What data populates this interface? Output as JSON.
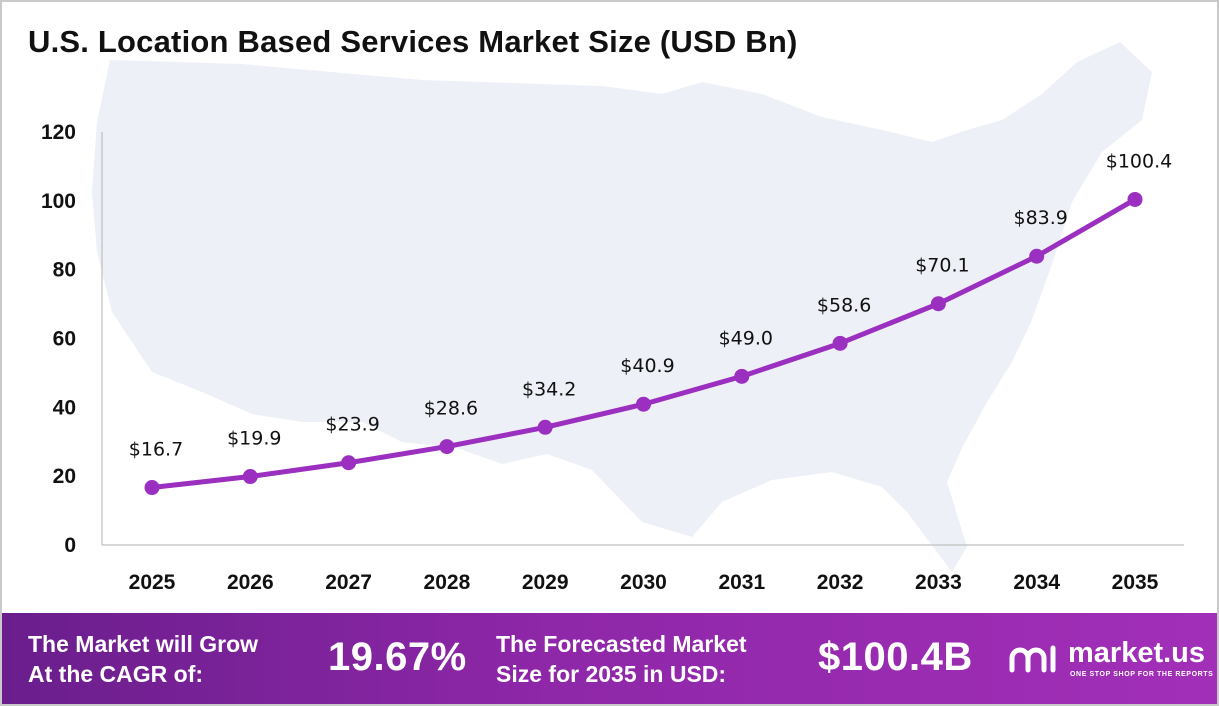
{
  "chart_data": {
    "type": "line",
    "title": "U.S. Location Based Services Market Size (USD Bn)",
    "xlabel": "",
    "ylabel": "",
    "categories": [
      "2025",
      "2026",
      "2027",
      "2028",
      "2029",
      "2030",
      "2031",
      "2032",
      "2033",
      "2034",
      "2035"
    ],
    "values": [
      16.7,
      19.9,
      23.9,
      28.6,
      34.2,
      40.9,
      49.0,
      58.6,
      70.1,
      83.9,
      100.4
    ],
    "data_labels": [
      "$16.7",
      "$19.9",
      "$23.9",
      "$28.6",
      "$34.2",
      "$40.9",
      "$49.0",
      "$58.6",
      "$70.1",
      "$83.9",
      "$100.4"
    ],
    "ylim": [
      0,
      120
    ],
    "yticks": [
      0,
      20,
      40,
      60,
      80,
      100,
      120
    ],
    "grid": false,
    "legend": "none",
    "line_color": "#9b2fc0",
    "background_map_color": "#eef0f7"
  },
  "footer": {
    "cagr_label_line1": "The Market will Grow",
    "cagr_label_line2": "At the CAGR of:",
    "cagr_value": "19.67%",
    "forecast_label_line1": "The Forecasted Market",
    "forecast_label_line2": "Size for 2035 in USD:",
    "forecast_value": "$100.4B",
    "brand_name": "market.us",
    "brand_tagline": "ONE STOP SHOP FOR THE REPORTS",
    "colors": {
      "start": "#6a1e8c",
      "end": "#a22fb8"
    }
  },
  "icons": {
    "logo": "market-us-logo-icon",
    "background": "usa-map-silhouette"
  }
}
